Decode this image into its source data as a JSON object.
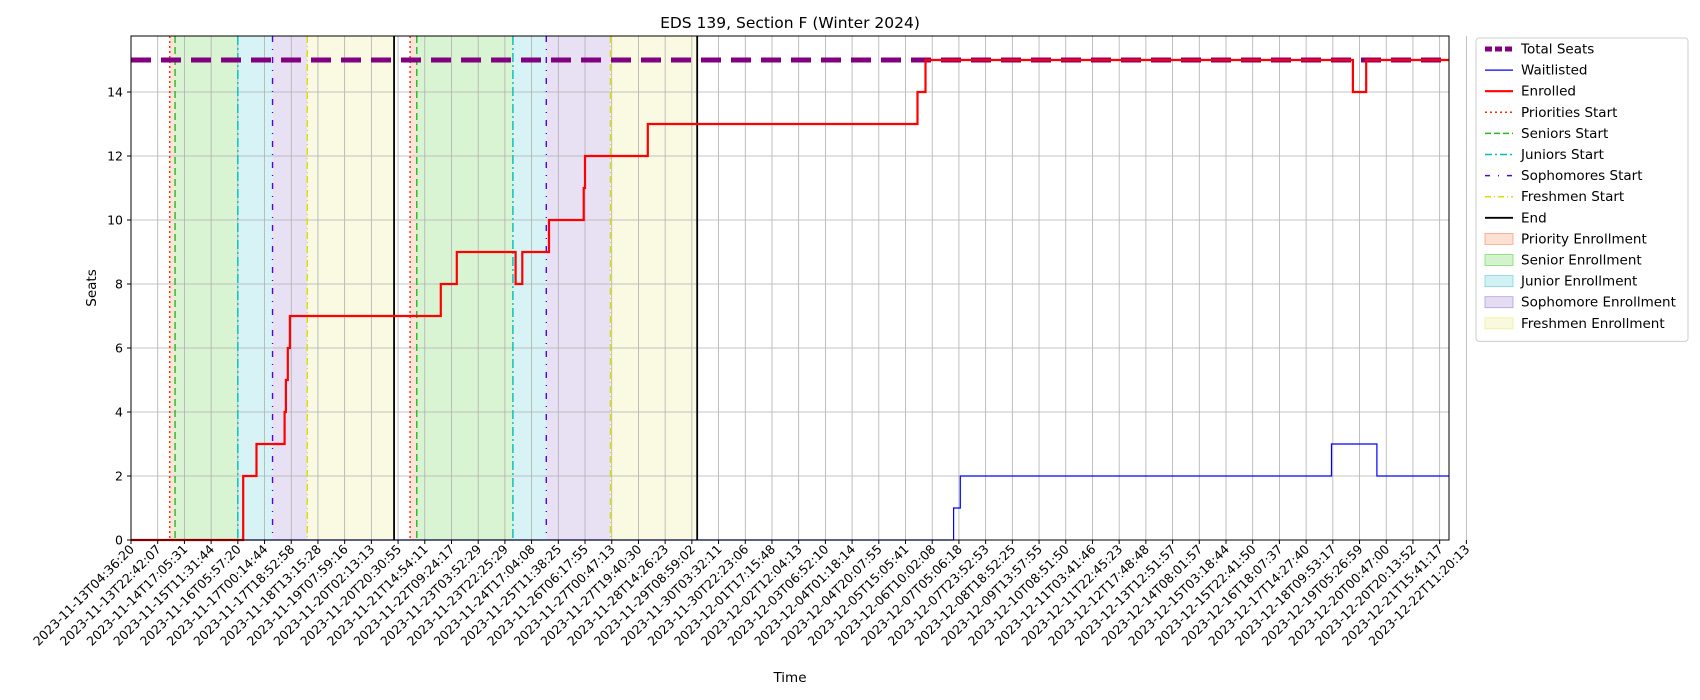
{
  "chart_data": {
    "type": "line",
    "title": "EDS 139, Section F (Winter 2024)",
    "xlabel": "Time",
    "ylabel": "Seats",
    "ylim": [
      0,
      15.75
    ],
    "yticks": [
      0,
      2,
      4,
      6,
      8,
      10,
      12,
      14
    ],
    "grid": true,
    "legend_position": "outside-right-top",
    "x_tick_labels": [
      "2023-11-13T04:36:20",
      "2023-11-13T22:42:07",
      "2023-11-14T17:05:31",
      "2023-11-15T11:31:44",
      "2023-11-16T05:57:20",
      "2023-11-17T00:14:44",
      "2023-11-17T18:52:58",
      "2023-11-18T13:15:28",
      "2023-11-19T07:59:16",
      "2023-11-20T02:13:13",
      "2023-11-20T20:30:55",
      "2023-11-21T14:54:11",
      "2023-11-22T09:24:17",
      "2023-11-23T03:52:29",
      "2023-11-23T22:25:29",
      "2023-11-24T17:04:08",
      "2023-11-25T11:38:25",
      "2023-11-26T06:17:55",
      "2023-11-27T00:47:13",
      "2023-11-27T19:40:30",
      "2023-11-28T14:26:23",
      "2023-11-29T08:59:02",
      "2023-11-30T03:32:11",
      "2023-11-30T22:23:06",
      "2023-12-01T17:15:48",
      "2023-12-02T12:04:13",
      "2023-12-03T06:52:10",
      "2023-12-04T01:18:14",
      "2023-12-04T20:07:55",
      "2023-12-05T15:05:41",
      "2023-12-06T10:02:08",
      "2023-12-07T05:06:18",
      "2023-12-07T23:52:53",
      "2023-12-08T18:52:25",
      "2023-12-09T13:57:55",
      "2023-12-10T08:51:50",
      "2023-12-11T03:41:46",
      "2023-12-11T22:45:23",
      "2023-12-12T17:48:48",
      "2023-12-13T12:51:57",
      "2023-12-14T08:01:57",
      "2023-12-15T03:18:44",
      "2023-12-15T22:41:50",
      "2023-12-16T18:07:37",
      "2023-12-17T14:27:40",
      "2023-12-18T09:53:17",
      "2023-12-19T05:26:59",
      "2023-12-20T00:47:00",
      "2023-12-20T20:13:52",
      "2023-12-21T15:41:17",
      "2023-12-22T11:20:13"
    ],
    "x_range_index": [
      0,
      49.35
    ],
    "periods": [
      {
        "name": "Priority Enrollment",
        "color": "#f4a582",
        "start": 1.45,
        "end": 1.65
      },
      {
        "name": "Senior Enrollment",
        "color": "#7fdc6b",
        "start": 1.65,
        "end": 4.0
      },
      {
        "name": "Junior Enrollment",
        "color": "#7ed6df",
        "start": 4.0,
        "end": 5.3
      },
      {
        "name": "Sophomore Enrollment",
        "color": "#b39ddb",
        "start": 5.3,
        "end": 6.6
      },
      {
        "name": "Freshmen Enrollment",
        "color": "#eeeea0",
        "start": 6.6,
        "end": 9.85
      },
      {
        "name": "Priority Enrollment",
        "color": "#f4a582",
        "start": 10.45,
        "end": 10.7
      },
      {
        "name": "Senior Enrollment",
        "color": "#7fdc6b",
        "start": 10.7,
        "end": 14.3
      },
      {
        "name": "Junior Enrollment",
        "color": "#7ed6df",
        "start": 14.3,
        "end": 15.55
      },
      {
        "name": "Sophomore Enrollment",
        "color": "#b39ddb",
        "start": 15.55,
        "end": 17.95
      },
      {
        "name": "Freshmen Enrollment",
        "color": "#eeeea0",
        "start": 17.95,
        "end": 21.2
      }
    ],
    "markers": [
      {
        "name": "Priorities Start",
        "color": "#ff2a00",
        "dash": "2,3",
        "x": [
          1.45,
          10.45
        ]
      },
      {
        "name": "Seniors Start",
        "color": "#22bb22",
        "dash": "7,4",
        "x": [
          1.65,
          10.7
        ]
      },
      {
        "name": "Juniors Start",
        "color": "#00bcbc",
        "dash": "9,3,2,3",
        "x": [
          4.0,
          14.3
        ]
      },
      {
        "name": "Sophomores Start",
        "color": "#5500dd",
        "dash": "6,7,1,7",
        "x": [
          5.3,
          15.55
        ]
      },
      {
        "name": "Freshmen Start",
        "color": "#dddd00",
        "dash": "7,3,1,3",
        "x": [
          6.6,
          17.95
        ]
      },
      {
        "name": "End",
        "color": "#000000",
        "dash": "",
        "x": [
          9.85,
          21.2
        ]
      }
    ],
    "series": [
      {
        "name": "Total Seats",
        "color": "#800080",
        "style": "dashed-thick",
        "points": [
          [
            0,
            15
          ],
          [
            49.35,
            15
          ]
        ]
      },
      {
        "name": "Waitlisted",
        "color": "#0000ff",
        "style": "step-thin",
        "points": [
          [
            0,
            0
          ],
          [
            30.8,
            0
          ],
          [
            30.8,
            1
          ],
          [
            31.05,
            1
          ],
          [
            31.05,
            2
          ],
          [
            44.95,
            2
          ],
          [
            44.95,
            3
          ],
          [
            46.65,
            3
          ],
          [
            46.65,
            2
          ],
          [
            49.35,
            2
          ]
        ]
      },
      {
        "name": "Enrolled",
        "color": "#ff0000",
        "style": "step",
        "points": [
          [
            0,
            0
          ],
          [
            4.2,
            0
          ],
          [
            4.2,
            2
          ],
          [
            4.7,
            2
          ],
          [
            4.7,
            3
          ],
          [
            5.75,
            3
          ],
          [
            5.75,
            4
          ],
          [
            5.8,
            4
          ],
          [
            5.8,
            5
          ],
          [
            5.87,
            5
          ],
          [
            5.87,
            6
          ],
          [
            5.95,
            6
          ],
          [
            5.95,
            7
          ],
          [
            11.6,
            7
          ],
          [
            11.6,
            8
          ],
          [
            12.2,
            8
          ],
          [
            12.2,
            9
          ],
          [
            14.4,
            9
          ],
          [
            14.4,
            8
          ],
          [
            14.65,
            8
          ],
          [
            14.65,
            9
          ],
          [
            15.65,
            9
          ],
          [
            15.65,
            10
          ],
          [
            16.95,
            10
          ],
          [
            16.95,
            11
          ],
          [
            17.0,
            11
          ],
          [
            17.0,
            12
          ],
          [
            19.35,
            12
          ],
          [
            19.35,
            13
          ],
          [
            29.45,
            13
          ],
          [
            29.45,
            14
          ],
          [
            29.75,
            14
          ],
          [
            29.75,
            15
          ],
          [
            45.75,
            15
          ],
          [
            45.75,
            14
          ],
          [
            46.25,
            14
          ],
          [
            46.25,
            15
          ],
          [
            49.35,
            15
          ]
        ]
      }
    ],
    "legend": [
      {
        "label": "Total Seats",
        "kind": "line",
        "color": "#800080",
        "width": 5,
        "dash": "7,3"
      },
      {
        "label": "Waitlisted",
        "kind": "line",
        "color": "#0000ff",
        "width": 1.2,
        "dash": ""
      },
      {
        "label": "Enrolled",
        "kind": "line",
        "color": "#ff0000",
        "width": 2.2,
        "dash": ""
      },
      {
        "label": "Priorities Start",
        "kind": "line",
        "color": "#ff2a00",
        "width": 1.5,
        "dash": "2,3"
      },
      {
        "label": "Seniors Start",
        "kind": "line",
        "color": "#22bb22",
        "width": 1.5,
        "dash": "6,3"
      },
      {
        "label": "Juniors Start",
        "kind": "line",
        "color": "#00bcbc",
        "width": 1.5,
        "dash": "7,3,2,3"
      },
      {
        "label": "Sophomores Start",
        "kind": "line",
        "color": "#5500dd",
        "width": 1.5,
        "dash": "5,8,1,8"
      },
      {
        "label": "Freshmen Start",
        "kind": "line",
        "color": "#dddd00",
        "width": 1.5,
        "dash": "6,3,1,3"
      },
      {
        "label": "End",
        "kind": "line",
        "color": "#000000",
        "width": 1.8,
        "dash": ""
      },
      {
        "label": "Priority Enrollment",
        "kind": "patch",
        "color": "#f4a582"
      },
      {
        "label": "Senior Enrollment",
        "kind": "patch",
        "color": "#7fdc6b"
      },
      {
        "label": "Junior Enrollment",
        "kind": "patch",
        "color": "#7ed6df"
      },
      {
        "label": "Sophomore Enrollment",
        "kind": "patch",
        "color": "#b39ddb"
      },
      {
        "label": "Freshmen Enrollment",
        "kind": "patch",
        "color": "#eeeea0"
      }
    ]
  }
}
